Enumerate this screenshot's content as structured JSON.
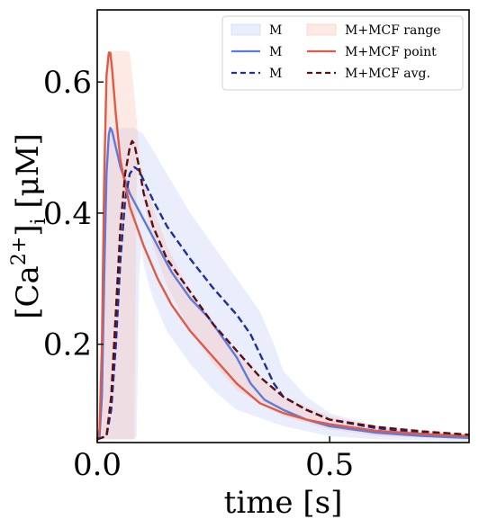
{
  "chart_data": {
    "type": "line",
    "xlabel": "time [s]",
    "ylabel_parts": {
      "main": "[Ca",
      "sup": "2+",
      "close": "]",
      "sub": "i",
      "unit": " [μM]"
    },
    "xlim": [
      0.0,
      0.8
    ],
    "ylim": [
      0.05,
      0.71
    ],
    "xticks": [
      0.0,
      0.5
    ],
    "xtick_labels": [
      "0.0",
      "0.5"
    ],
    "yticks": [
      0.2,
      0.4,
      0.6
    ],
    "ytick_labels": [
      "0.2",
      "0.4",
      "0.6"
    ],
    "legend_position": "top-right",
    "legend_columns": 2,
    "colors": {
      "m_band": "#b8c8f4",
      "mcf_band": "#f7b8a8",
      "m_point": "#5f79dc",
      "m_avg": "#1f2f98",
      "mcf_point": "#e05a45",
      "mcf_avg": "#5a1010"
    },
    "bands": [
      {
        "name": "M",
        "color_key": "m_band",
        "upper": [
          [
            0.0,
            0.055
          ],
          [
            0.005,
            0.06
          ],
          [
            0.01,
            0.1
          ],
          [
            0.015,
            0.28
          ],
          [
            0.02,
            0.45
          ],
          [
            0.025,
            0.52
          ],
          [
            0.03,
            0.53
          ],
          [
            0.05,
            0.53
          ],
          [
            0.08,
            0.53
          ],
          [
            0.1,
            0.52
          ],
          [
            0.15,
            0.46
          ],
          [
            0.2,
            0.4
          ],
          [
            0.25,
            0.35
          ],
          [
            0.3,
            0.3
          ],
          [
            0.35,
            0.25
          ],
          [
            0.38,
            0.2
          ],
          [
            0.4,
            0.16
          ],
          [
            0.45,
            0.12
          ],
          [
            0.5,
            0.095
          ],
          [
            0.6,
            0.075
          ],
          [
            0.7,
            0.065
          ],
          [
            0.8,
            0.06
          ]
        ],
        "lower": [
          [
            0.8,
            0.052
          ],
          [
            0.6,
            0.055
          ],
          [
            0.5,
            0.06
          ],
          [
            0.4,
            0.075
          ],
          [
            0.3,
            0.1
          ],
          [
            0.25,
            0.13
          ],
          [
            0.2,
            0.17
          ],
          [
            0.15,
            0.22
          ],
          [
            0.12,
            0.27
          ],
          [
            0.1,
            0.32
          ],
          [
            0.095,
            0.35
          ],
          [
            0.09,
            0.3
          ],
          [
            0.085,
            0.06
          ],
          [
            0.08,
            0.055
          ],
          [
            0.0,
            0.055
          ]
        ]
      },
      {
        "name": "M+MCF range",
        "color_key": "mcf_band",
        "upper": [
          [
            0.0,
            0.055
          ],
          [
            0.005,
            0.07
          ],
          [
            0.01,
            0.2
          ],
          [
            0.015,
            0.45
          ],
          [
            0.02,
            0.62
          ],
          [
            0.025,
            0.645
          ],
          [
            0.04,
            0.648
          ],
          [
            0.06,
            0.648
          ],
          [
            0.07,
            0.645
          ],
          [
            0.08,
            0.58
          ],
          [
            0.09,
            0.5
          ],
          [
            0.1,
            0.45
          ],
          [
            0.15,
            0.35
          ],
          [
            0.2,
            0.28
          ],
          [
            0.25,
            0.23
          ],
          [
            0.3,
            0.19
          ],
          [
            0.35,
            0.15
          ],
          [
            0.4,
            0.12
          ],
          [
            0.5,
            0.09
          ],
          [
            0.6,
            0.075
          ],
          [
            0.7,
            0.068
          ],
          [
            0.8,
            0.062
          ]
        ],
        "lower": [
          [
            0.8,
            0.055
          ],
          [
            0.6,
            0.06
          ],
          [
            0.5,
            0.07
          ],
          [
            0.4,
            0.09
          ],
          [
            0.3,
            0.13
          ],
          [
            0.25,
            0.17
          ],
          [
            0.2,
            0.22
          ],
          [
            0.15,
            0.29
          ],
          [
            0.12,
            0.35
          ],
          [
            0.1,
            0.42
          ],
          [
            0.09,
            0.5
          ],
          [
            0.085,
            0.45
          ],
          [
            0.08,
            0.055
          ],
          [
            0.0,
            0.055
          ]
        ]
      }
    ],
    "series": [
      {
        "name": "M",
        "color_key": "m_point",
        "dash": false,
        "points": [
          [
            0.0,
            0.055
          ],
          [
            0.005,
            0.06
          ],
          [
            0.01,
            0.12
          ],
          [
            0.015,
            0.3
          ],
          [
            0.02,
            0.46
          ],
          [
            0.025,
            0.52
          ],
          [
            0.028,
            0.53
          ],
          [
            0.032,
            0.525
          ],
          [
            0.04,
            0.5
          ],
          [
            0.05,
            0.47
          ],
          [
            0.07,
            0.43
          ],
          [
            0.1,
            0.39
          ],
          [
            0.13,
            0.35
          ],
          [
            0.16,
            0.31
          ],
          [
            0.2,
            0.27
          ],
          [
            0.24,
            0.24
          ],
          [
            0.27,
            0.21
          ],
          [
            0.3,
            0.18
          ],
          [
            0.33,
            0.14
          ],
          [
            0.36,
            0.115
          ],
          [
            0.4,
            0.1
          ],
          [
            0.45,
            0.085
          ],
          [
            0.5,
            0.075
          ],
          [
            0.6,
            0.065
          ],
          [
            0.7,
            0.06
          ],
          [
            0.8,
            0.057
          ]
        ]
      },
      {
        "name": "M",
        "color_key": "m_avg",
        "dash": true,
        "points": [
          [
            0.0,
            0.055
          ],
          [
            0.02,
            0.06
          ],
          [
            0.03,
            0.1
          ],
          [
            0.04,
            0.2
          ],
          [
            0.05,
            0.33
          ],
          [
            0.06,
            0.42
          ],
          [
            0.07,
            0.46
          ],
          [
            0.08,
            0.47
          ],
          [
            0.09,
            0.465
          ],
          [
            0.1,
            0.45
          ],
          [
            0.12,
            0.42
          ],
          [
            0.15,
            0.38
          ],
          [
            0.2,
            0.33
          ],
          [
            0.25,
            0.285
          ],
          [
            0.3,
            0.245
          ],
          [
            0.33,
            0.215
          ],
          [
            0.36,
            0.17
          ],
          [
            0.38,
            0.14
          ],
          [
            0.4,
            0.12
          ],
          [
            0.45,
            0.1
          ],
          [
            0.5,
            0.085
          ],
          [
            0.6,
            0.072
          ],
          [
            0.7,
            0.065
          ],
          [
            0.8,
            0.06
          ]
        ]
      },
      {
        "name": "M+MCF point",
        "color_key": "mcf_point",
        "dash": false,
        "points": [
          [
            0.0,
            0.055
          ],
          [
            0.005,
            0.07
          ],
          [
            0.01,
            0.2
          ],
          [
            0.015,
            0.45
          ],
          [
            0.02,
            0.61
          ],
          [
            0.025,
            0.645
          ],
          [
            0.028,
            0.645
          ],
          [
            0.032,
            0.62
          ],
          [
            0.04,
            0.55
          ],
          [
            0.05,
            0.48
          ],
          [
            0.07,
            0.41
          ],
          [
            0.1,
            0.35
          ],
          [
            0.13,
            0.3
          ],
          [
            0.16,
            0.26
          ],
          [
            0.2,
            0.22
          ],
          [
            0.25,
            0.18
          ],
          [
            0.3,
            0.14
          ],
          [
            0.35,
            0.11
          ],
          [
            0.4,
            0.095
          ],
          [
            0.45,
            0.085
          ],
          [
            0.5,
            0.078
          ],
          [
            0.6,
            0.068
          ],
          [
            0.7,
            0.063
          ],
          [
            0.8,
            0.06
          ]
        ]
      },
      {
        "name": "M+MCF avg.",
        "color_key": "mcf_avg",
        "dash": true,
        "points": [
          [
            0.0,
            0.055
          ],
          [
            0.02,
            0.06
          ],
          [
            0.03,
            0.12
          ],
          [
            0.04,
            0.25
          ],
          [
            0.05,
            0.38
          ],
          [
            0.06,
            0.46
          ],
          [
            0.07,
            0.5
          ],
          [
            0.075,
            0.51
          ],
          [
            0.08,
            0.505
          ],
          [
            0.09,
            0.47
          ],
          [
            0.1,
            0.43
          ],
          [
            0.12,
            0.38
          ],
          [
            0.15,
            0.33
          ],
          [
            0.2,
            0.28
          ],
          [
            0.25,
            0.23
          ],
          [
            0.3,
            0.19
          ],
          [
            0.35,
            0.15
          ],
          [
            0.4,
            0.12
          ],
          [
            0.45,
            0.1
          ],
          [
            0.5,
            0.085
          ],
          [
            0.6,
            0.074
          ],
          [
            0.7,
            0.067
          ],
          [
            0.8,
            0.062
          ]
        ]
      }
    ],
    "legend": [
      {
        "label": "M",
        "kind": "band",
        "color_key": "m_band"
      },
      {
        "label": "M",
        "kind": "line",
        "color_key": "m_point",
        "dash": false
      },
      {
        "label": "M",
        "kind": "line",
        "color_key": "m_avg",
        "dash": true
      },
      {
        "label": "M+MCF range",
        "kind": "band",
        "color_key": "mcf_band"
      },
      {
        "label": "M+MCF point",
        "kind": "line",
        "color_key": "mcf_point",
        "dash": false
      },
      {
        "label": "M+MCF avg.",
        "kind": "line",
        "color_key": "mcf_avg",
        "dash": true
      }
    ]
  }
}
